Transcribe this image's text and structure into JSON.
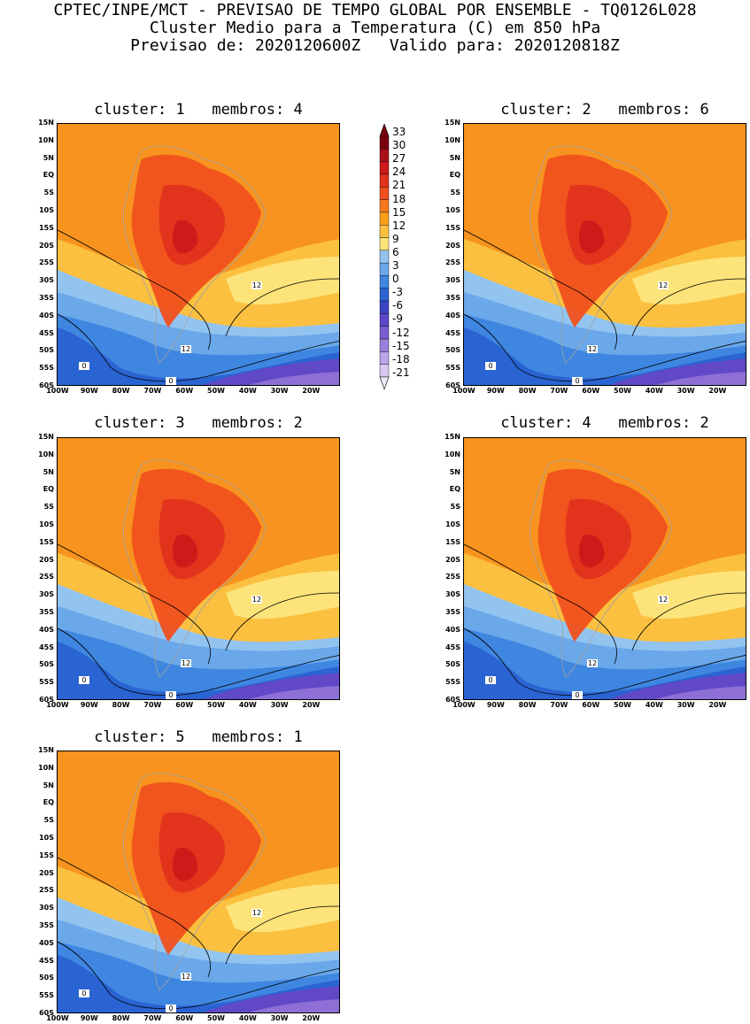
{
  "header": {
    "line1": "CPTEC/INPE/MCT - PREVISAO DE TEMPO GLOBAL POR ENSEMBLE - TQ0126L028",
    "line2": "Cluster Medio para a Temperatura (C) em 850 hPa",
    "line3": "Previsao de: 2020120600Z   Valido para: 2020120818Z"
  },
  "lat_labels": [
    "15N",
    "10N",
    "5N",
    "EQ",
    "5S",
    "10S",
    "15S",
    "20S",
    "25S",
    "30S",
    "35S",
    "40S",
    "45S",
    "50S",
    "55S",
    "60S"
  ],
  "lon_labels": [
    "100W",
    "90W",
    "80W",
    "70W",
    "60W",
    "50W",
    "40W",
    "30W",
    "20W"
  ],
  "colorbar": {
    "labels": [
      "33",
      "30",
      "27",
      "24",
      "21",
      "18",
      "15",
      "12",
      "9",
      "6",
      "3",
      "0",
      "-3",
      "-6",
      "-9",
      "-12",
      "-15",
      "-18",
      "-21"
    ],
    "colors": [
      "#7a0010",
      "#a8101a",
      "#cc1a1a",
      "#e0321c",
      "#f0501e",
      "#f7781e",
      "#fa9f1a",
      "#fbc040",
      "#fde47a",
      "#93c4f0",
      "#6aa8ea",
      "#3f86e0",
      "#2a63d2",
      "#3a44c4",
      "#5c46c8",
      "#7a5dd0",
      "#9a80dc",
      "#b9a4e6",
      "#d6c8f0"
    ]
  },
  "panels": [
    {
      "title": "cluster: 1   membros: 4"
    },
    {
      "title": "cluster: 2   membros: 6"
    },
    {
      "title": "cluster: 3   membros: 2"
    },
    {
      "title": "cluster: 4   membros: 2"
    },
    {
      "title": "cluster: 5   membros: 1"
    }
  ],
  "contour_labels": [
    "12",
    "0"
  ]
}
